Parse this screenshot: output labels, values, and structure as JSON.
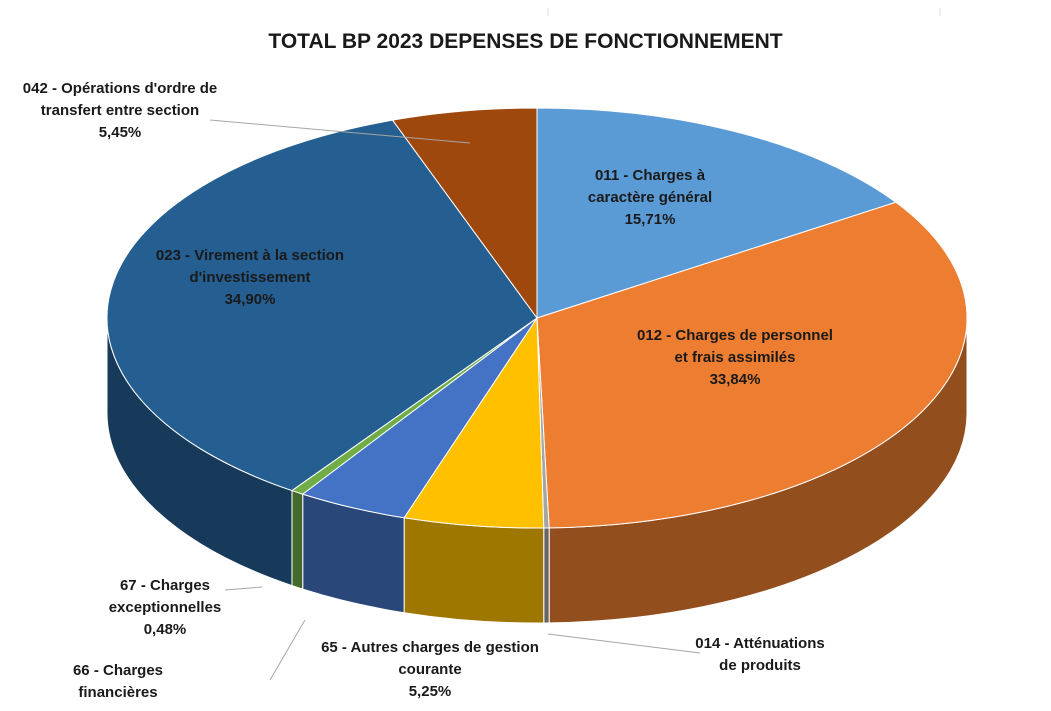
{
  "chart_data": {
    "type": "pie",
    "title": "TOTAL BP 2023 DEPENSES DE FONCTIONNEMENT",
    "categories": [
      "011 - Charges à caractère général",
      "012 - Charges de personnel et frais assimilés",
      "014 - Atténuations de produits",
      "65 - Autres charges de gestion courante",
      "66 - Charges financières",
      "67 - Charges exceptionnelles",
      "023 - Virement à la section d'investissement",
      "042 - Opérations d'ordre de transfert entre section"
    ],
    "values": [
      15.71,
      33.84,
      0.2,
      5.25,
      4.17,
      0.48,
      34.9,
      5.45
    ],
    "value_labels": [
      "15,71%",
      "33,84%",
      null,
      "5,25%",
      null,
      "0,48%",
      "34,90%",
      "5,45%"
    ],
    "colors": [
      "#5b9bd5",
      "#ed7d31",
      "#a5a5a5",
      "#ffc000",
      "#4472c4",
      "#70ad47",
      "#255e91",
      "#9e480e"
    ]
  }
}
